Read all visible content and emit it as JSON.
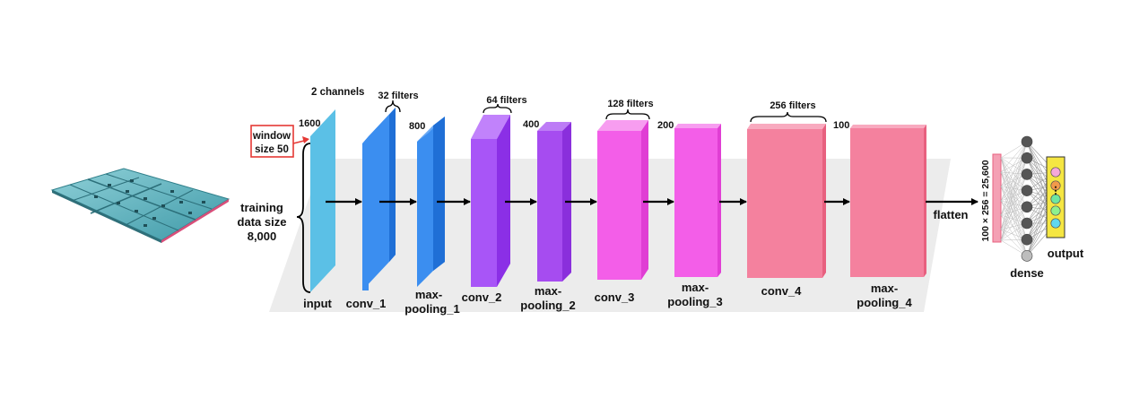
{
  "input_block": {
    "channels": "2 channels",
    "dim": "1600",
    "window_line1": "window",
    "window_line2": "size 50",
    "training_line1": "training",
    "training_line2": "data size",
    "training_line3": "8,000",
    "label": "input"
  },
  "layers": {
    "conv_1": {
      "label": "conv_1",
      "filters": "32 filters"
    },
    "pool_1": {
      "label_line1": "max-",
      "label_line2": "pooling_1",
      "dim": "800"
    },
    "conv_2": {
      "label": "conv_2",
      "filters": "64 filters"
    },
    "pool_2": {
      "label_line1": "max-",
      "label_line2": "pooling_2",
      "dim": "400"
    },
    "conv_3": {
      "label": "conv_3",
      "filters": "128 filters"
    },
    "pool_3": {
      "label_line1": "max-",
      "label_line2": "pooling_3",
      "dim": "200"
    },
    "conv_4": {
      "label": "conv_4",
      "filters": "256 filters"
    },
    "pool_4": {
      "label_line1": "max-",
      "label_line2": "pooling_4",
      "dim": "100"
    }
  },
  "head": {
    "flatten": "flatten",
    "flat_size": "100 × 256 = 25,600",
    "dense": "dense",
    "output": "output",
    "ellipsis": "⋮"
  },
  "colors": {
    "input": "#5bc0e6",
    "conv_1": "#3b8ef0",
    "pool_1": "#3b8ef0",
    "conv_2": "#a855f7",
    "pool_2": "#a64cf0",
    "conv_3": "#f35ee8",
    "pool_3": "#f35ee8",
    "conv_4": "#f4819e",
    "pool_4": "#f4819e",
    "window_box": "#e53935",
    "output_box": "#f5e642",
    "output_nodes": [
      "#f6a8d8",
      "#f29a4a",
      "#6ee6a0",
      "#8ef08e",
      "#5fd7ef"
    ]
  }
}
